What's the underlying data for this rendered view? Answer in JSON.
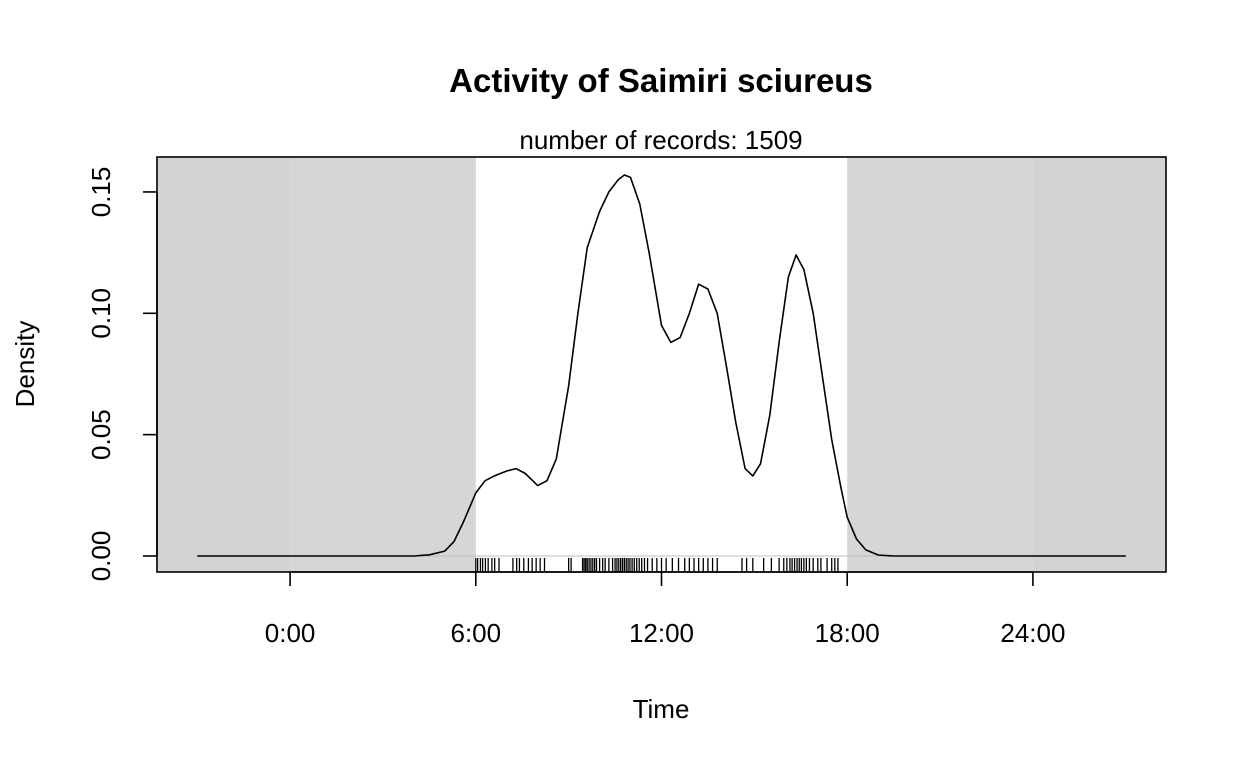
{
  "chart_data": {
    "type": "line",
    "title": "Activity of Saimiri sciureus",
    "subtitle": "number of records: 1509",
    "xlabel": "Time",
    "ylabel": "Density",
    "xlim": [
      -4.3,
      28.3
    ],
    "ylim": [
      -0.0066,
      0.1644
    ],
    "x_ticks": [
      0,
      6,
      12,
      18,
      24
    ],
    "x_tick_labels": [
      "0:00",
      "6:00",
      "12:00",
      "18:00",
      "24:00"
    ],
    "y_ticks": [
      0.0,
      0.05,
      0.1,
      0.15
    ],
    "y_tick_labels": [
      "0.00",
      "0.05",
      "0.10",
      "0.15"
    ],
    "grid": false,
    "night_shading": [
      {
        "from": -4.3,
        "to": 0,
        "color": "#d3d3d3"
      },
      {
        "from": 0,
        "to": 6,
        "color": "#d6d6d6"
      },
      {
        "from": 18,
        "to": 24,
        "color": "#d6d6d6"
      },
      {
        "from": 24,
        "to": 28.3,
        "color": "#d3d3d3"
      }
    ],
    "series": [
      {
        "x": [
          -3.0,
          -2.0,
          -1.0,
          0.0,
          1.0,
          2.0,
          3.0,
          4.0,
          4.5,
          5.0,
          5.3,
          5.6,
          6.0,
          6.3,
          6.6,
          7.0,
          7.3,
          7.6,
          8.0,
          8.3,
          8.6,
          9.0,
          9.3,
          9.6,
          10.0,
          10.3,
          10.6,
          10.8,
          11.0,
          11.3,
          11.6,
          12.0,
          12.3,
          12.6,
          12.9,
          13.2,
          13.5,
          13.8,
          14.1,
          14.4,
          14.7,
          14.95,
          15.2,
          15.5,
          15.8,
          16.1,
          16.35,
          16.6,
          16.9,
          17.2,
          17.5,
          17.8,
          18.0,
          18.3,
          18.6,
          19.0,
          19.5,
          20.0,
          21.0,
          22.0,
          23.0,
          24.0,
          25.0,
          26.0,
          27.0
        ],
        "y": [
          0,
          0,
          0,
          0,
          0,
          0,
          0,
          0,
          0.0005,
          0.002,
          0.006,
          0.014,
          0.026,
          0.031,
          0.033,
          0.035,
          0.036,
          0.034,
          0.029,
          0.031,
          0.04,
          0.07,
          0.1,
          0.127,
          0.142,
          0.15,
          0.155,
          0.157,
          0.156,
          0.145,
          0.125,
          0.095,
          0.088,
          0.09,
          0.1,
          0.112,
          0.11,
          0.1,
          0.078,
          0.055,
          0.036,
          0.033,
          0.038,
          0.058,
          0.088,
          0.115,
          0.124,
          0.118,
          0.1,
          0.074,
          0.048,
          0.028,
          0.016,
          0.007,
          0.0025,
          0.0004,
          0,
          0,
          0,
          0,
          0,
          0,
          0,
          0,
          0
        ]
      }
    ],
    "rug": [
      6.0,
      6.06,
      6.15,
      6.22,
      6.31,
      6.4,
      6.52,
      6.61,
      6.75,
      7.2,
      7.32,
      7.41,
      7.55,
      7.7,
      7.82,
      7.95,
      8.08,
      8.22,
      9.0,
      9.08,
      9.45,
      9.5,
      9.55,
      9.6,
      9.66,
      9.72,
      9.78,
      9.84,
      9.9,
      10.0,
      10.1,
      10.18,
      10.3,
      10.42,
      10.5,
      10.56,
      10.62,
      10.68,
      10.74,
      10.8,
      10.86,
      10.92,
      10.98,
      11.05,
      11.12,
      11.2,
      11.28,
      11.36,
      11.45,
      11.55,
      11.7,
      11.85,
      12.0,
      12.15,
      12.35,
      12.55,
      12.75,
      12.9,
      13.05,
      13.2,
      13.35,
      13.5,
      13.65,
      13.8,
      14.6,
      14.75,
      14.95,
      15.3,
      15.55,
      15.8,
      15.95,
      16.05,
      16.15,
      16.22,
      16.3,
      16.38,
      16.45,
      16.52,
      16.6,
      16.68,
      16.78,
      16.9,
      17.05,
      17.15,
      17.35,
      17.5,
      17.6,
      17.7
    ]
  }
}
